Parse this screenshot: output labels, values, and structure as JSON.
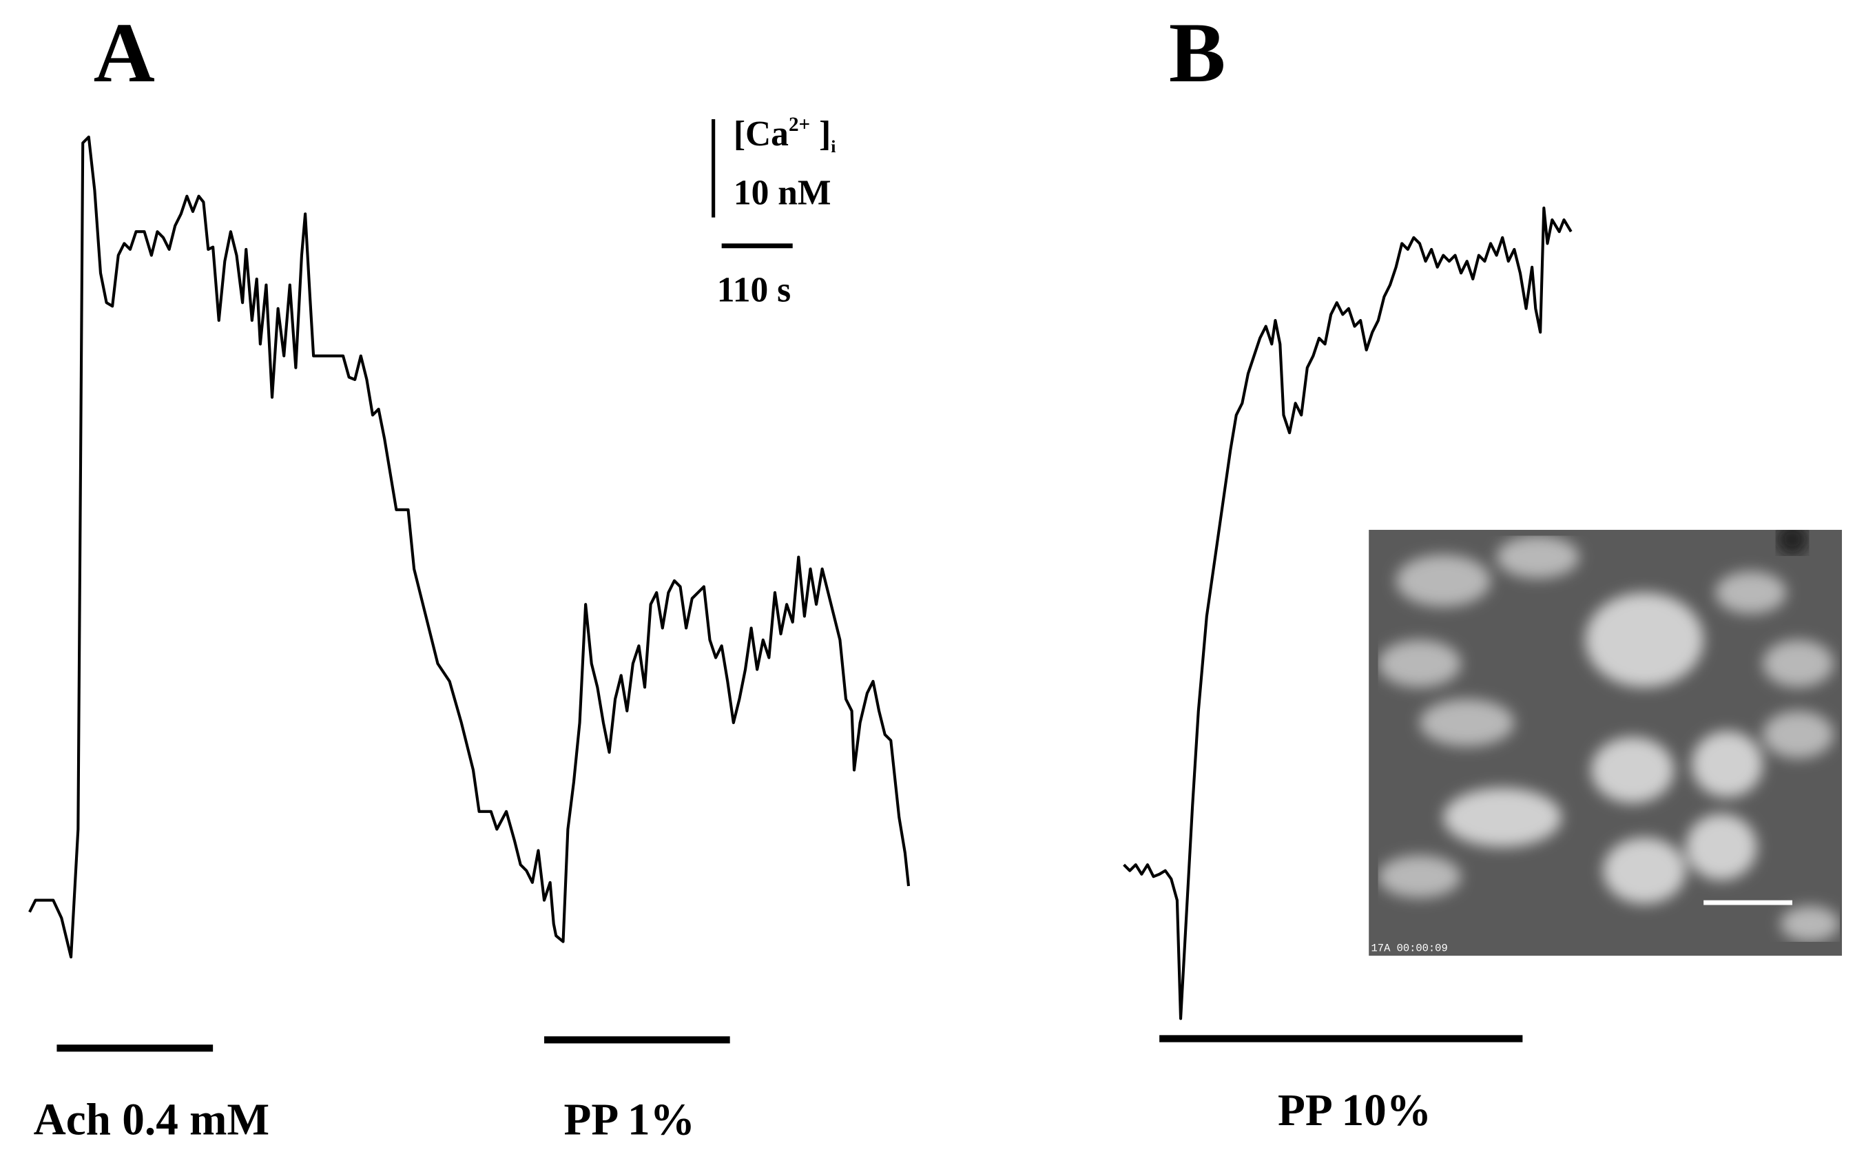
{
  "panels": {
    "a": {
      "label": "A",
      "stimulus_1": "Ach 0.4 mM",
      "stimulus_2": "PP 1%"
    },
    "b": {
      "label": "B",
      "stimulus": "PP 10%",
      "inset_timestamp": "17A 00:00:09"
    }
  },
  "scale_bar": {
    "species_open": "[Ca",
    "species_charge": "2+",
    "species_close": " ]",
    "species_sub": "i",
    "concentration": "10 nM",
    "time": "110 s"
  }
}
